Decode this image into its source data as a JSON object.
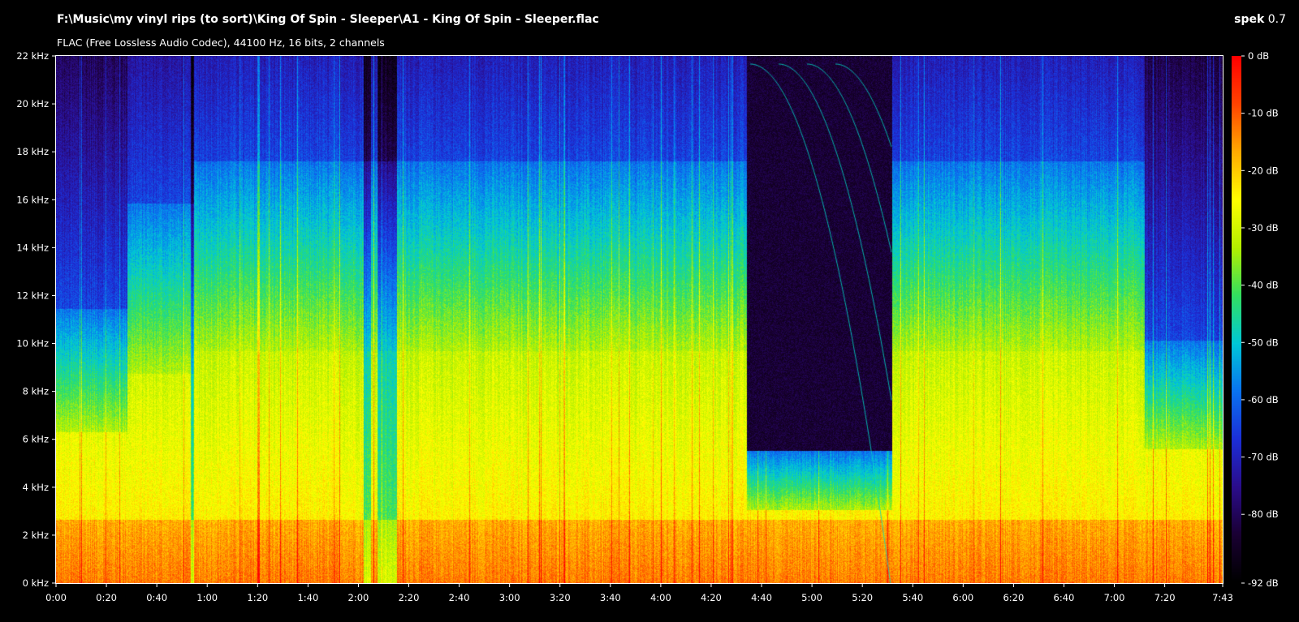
{
  "header": {
    "file_path": "F:\\Music\\my vinyl rips (to sort)\\King Of Spin - Sleeper\\A1 - King Of Spin - Sleeper.flac",
    "file_info": "FLAC (Free Lossless Audio Codec), 44100 Hz, 16 bits, 2 channels",
    "app_name": "spek",
    "app_version": "0.7"
  },
  "spectrogram": {
    "freq_ticks": [
      "0 kHz",
      "2 kHz",
      "4 kHz",
      "6 kHz",
      "8 kHz",
      "10 kHz",
      "12 kHz",
      "14 kHz",
      "16 kHz",
      "18 kHz",
      "20 kHz",
      "22 kHz"
    ],
    "time_ticks": [
      "0:00",
      "0:20",
      "0:40",
      "1:00",
      "1:20",
      "1:40",
      "2:00",
      "2:20",
      "2:40",
      "3:00",
      "3:20",
      "3:40",
      "4:00",
      "4:20",
      "4:40",
      "5:00",
      "5:20",
      "5:40",
      "6:00",
      "6:20",
      "6:40",
      "7:00",
      "7:20",
      "7:43"
    ],
    "db_ticks": [
      "0 dB",
      "-10 dB",
      "-20 dB",
      "-30 dB",
      "-40 dB",
      "-50 dB",
      "-60 dB",
      "-70 dB",
      "-80 dB",
      "-92 dB"
    ],
    "duration_seconds": 463,
    "max_freq_khz": 22,
    "min_db": -92,
    "palette_stops": [
      "#000000",
      "#1a0033",
      "#2b0d8c",
      "#1c2fd8",
      "#0a74f0",
      "#00c8d8",
      "#33e060",
      "#b4f000",
      "#ffff00",
      "#ffaa00",
      "#ff4400",
      "#ff0000"
    ]
  }
}
